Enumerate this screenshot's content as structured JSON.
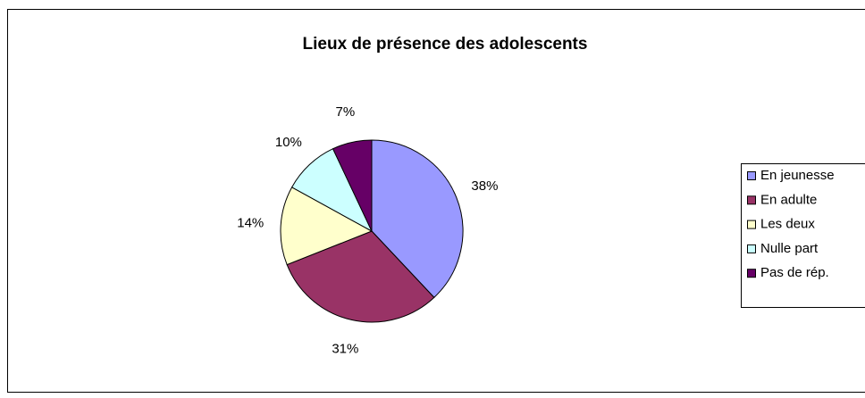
{
  "chart_data": {
    "type": "pie",
    "title": "Lieux de présence des adolescents",
    "categories": [
      "En jeunesse",
      "En adulte",
      "Les deux",
      "Nulle part",
      "Pas de rép."
    ],
    "values": [
      38,
      31,
      14,
      10,
      7
    ],
    "value_labels": [
      "38%",
      "31%",
      "14%",
      "10%",
      "7%"
    ],
    "colors": [
      "#9999ff",
      "#993366",
      "#ffffcc",
      "#ccffff",
      "#660066"
    ],
    "legend": "right"
  }
}
